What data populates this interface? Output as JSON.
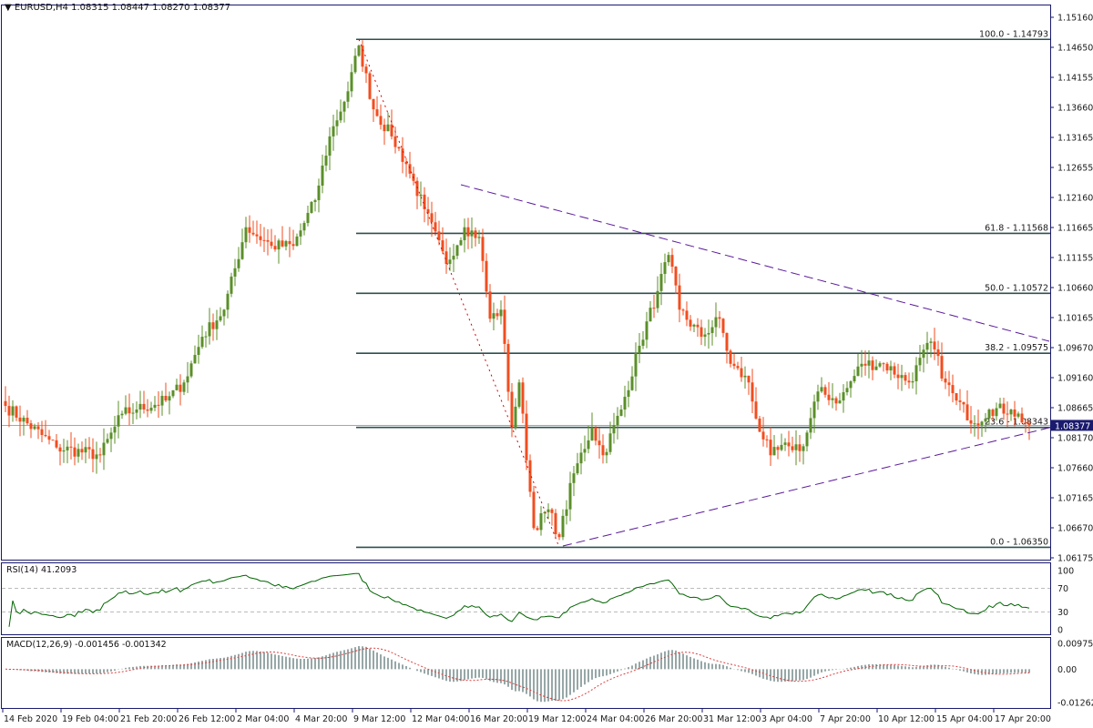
{
  "header": {
    "symbol": "EURUSD,H4",
    "open": "1.08315",
    "high": "1.08447",
    "low": "1.08270",
    "close": "1.08377"
  },
  "rsi": {
    "label": "RSI(14) 41.2093",
    "levels": [
      "100",
      "70",
      "30",
      "0"
    ]
  },
  "macd": {
    "label": "MACD(12,26,9) -0.001456 -0.001342",
    "levels": [
      "0.009753",
      "0.00",
      "-0.012626"
    ]
  },
  "price_axis": [
    "1.15160",
    "1.14650",
    "1.14155",
    "1.13660",
    "1.13165",
    "1.12655",
    "1.12160",
    "1.11665",
    "1.11155",
    "1.10660",
    "1.10165",
    "1.09670",
    "1.09160",
    "1.08665",
    "1.08170",
    "1.07660",
    "1.07165",
    "1.06670",
    "1.06175"
  ],
  "current_price": "1.08377",
  "time_axis": [
    "14 Feb 2020",
    "19 Feb 04:00",
    "21 Feb 20:00",
    "26 Feb 12:00",
    "2 Mar 04:00",
    "4 Mar 20:00",
    "9 Mar 12:00",
    "12 Mar 04:00",
    "16 Mar 20:00",
    "19 Mar 12:00",
    "24 Mar 04:00",
    "26 Mar 20:00",
    "31 Mar 12:00",
    "3 Apr 04:00",
    "7 Apr 20:00",
    "10 Apr 12:00",
    "15 Apr 04:00",
    "17 Apr 20:00"
  ],
  "fibonacci": [
    {
      "label": "100.0 - 1.14793",
      "price": 1.14793
    },
    {
      "label": "61.8 - 1.11568",
      "price": 1.11568
    },
    {
      "label": "50.0 - 1.10572",
      "price": 1.10572
    },
    {
      "label": "38.2 - 1.09575",
      "price": 1.09575
    },
    {
      "label": "23.6 - 1.08343",
      "price": 1.08343
    },
    {
      "label": "0.0 - 1.06350",
      "price": 1.0635
    }
  ],
  "colors": {
    "bull": "#5b8f2a",
    "bear": "#f24d1f",
    "fib": "#2f4f4f",
    "trendline": "#5a1a9a",
    "zigzag": "#e00000",
    "rsi": "#006400",
    "macd_hist": "#2f4f4f",
    "macd_signal": "#e04040",
    "axis": "#1a1a6e"
  },
  "chart_data": {
    "type": "candlestick",
    "timeframe": "H4",
    "ylim": [
      1.06175,
      1.1516
    ],
    "close_path": [
      [
        0,
        1.087
      ],
      [
        14,
        1.0801
      ],
      [
        26,
        1.0788
      ],
      [
        32,
        1.0857
      ],
      [
        36,
        1.0864
      ],
      [
        44,
        1.0879
      ],
      [
        49,
        1.0909
      ],
      [
        54,
        1.0985
      ],
      [
        60,
        1.103
      ],
      [
        66,
        1.1167
      ],
      [
        73,
        1.1136
      ],
      [
        79,
        1.1136
      ],
      [
        85,
        1.1212
      ],
      [
        89,
        1.1318
      ],
      [
        94,
        1.1393
      ],
      [
        97,
        1.1469
      ],
      [
        101,
        1.1363
      ],
      [
        106,
        1.1318
      ],
      [
        110,
        1.1272
      ],
      [
        115,
        1.1197
      ],
      [
        121,
        1.1106
      ],
      [
        126,
        1.1167
      ],
      [
        130,
        1.1151
      ],
      [
        133,
        1.1015
      ],
      [
        136,
        1.103
      ],
      [
        139,
        1.0834
      ],
      [
        141,
        1.0909
      ],
      [
        145,
        1.0667
      ],
      [
        149,
        1.0698
      ],
      [
        152,
        1.0652
      ],
      [
        156,
        1.0758
      ],
      [
        161,
        1.0834
      ],
      [
        164,
        1.0788
      ],
      [
        169,
        1.0864
      ],
      [
        174,
        1.097
      ],
      [
        179,
        1.1061
      ],
      [
        182,
        1.1121
      ],
      [
        185,
        1.103
      ],
      [
        191,
        1.0985
      ],
      [
        196,
        1.1015
      ],
      [
        199,
        1.094
      ],
      [
        204,
        1.0909
      ],
      [
        206,
        1.0849
      ],
      [
        210,
        1.0788
      ],
      [
        215,
        1.0803
      ],
      [
        219,
        1.0803
      ],
      [
        223,
        1.0894
      ],
      [
        229,
        1.0879
      ],
      [
        235,
        1.094
      ],
      [
        241,
        1.094
      ],
      [
        248,
        1.0909
      ],
      [
        254,
        1.0977
      ],
      [
        258,
        1.0909
      ],
      [
        261,
        1.0879
      ],
      [
        266,
        1.0841
      ],
      [
        270,
        1.0864
      ],
      [
        276,
        1.0864
      ],
      [
        281,
        1.08377
      ]
    ],
    "trendlines": [
      {
        "kind": "upper",
        "from": [
          125,
          1.12377
        ],
        "to": [
          287,
          1.09775
        ]
      },
      {
        "kind": "lower",
        "from": [
          153,
          1.06372
        ],
        "to": [
          287,
          1.08338
        ]
      }
    ],
    "zigzag": {
      "from": [
        97,
        1.14793
      ],
      "to": [
        152,
        1.0635
      ]
    },
    "fib_start_bar": 97
  }
}
